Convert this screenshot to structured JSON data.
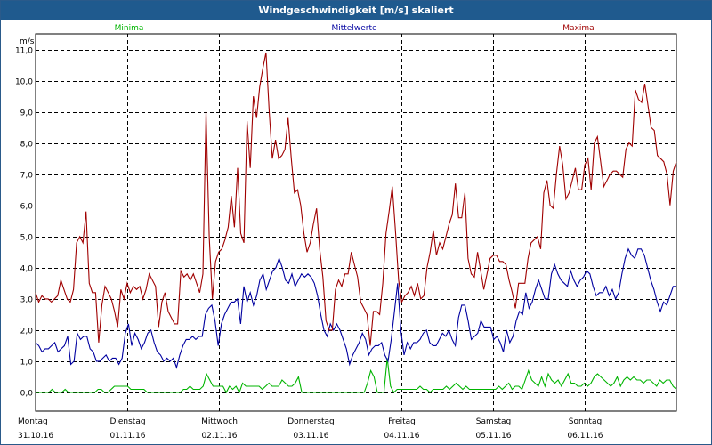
{
  "window": {
    "title": "Windgeschwindigkeit [m/s] skaliert"
  },
  "colors": {
    "min": "#00b400",
    "mean": "#0000a0",
    "max": "#a00000",
    "title_bg": "#1f5a8e"
  },
  "chart_data": {
    "type": "line",
    "title": "Windgeschwindigkeit [m/s] skaliert",
    "ylabel": "m/s",
    "ylim": [
      -0.6,
      11.5
    ],
    "grid": true,
    "legend_position": "top",
    "y_ticks": [
      "0,0",
      "1,0",
      "2,0",
      "3,0",
      "4,0",
      "5,0",
      "6,0",
      "7,0",
      "8,0",
      "9,0",
      "10,0",
      "11,0"
    ],
    "day_labels": [
      {
        "day": "Montag",
        "date": "31.10.16"
      },
      {
        "day": "Dienstag",
        "date": "01.11.16"
      },
      {
        "day": "Mittwoch",
        "date": "02.11.16"
      },
      {
        "day": "Donnerstag",
        "date": "03.11.16"
      },
      {
        "day": "Freitag",
        "date": "04.11.16"
      },
      {
        "day": "Samstag",
        "date": "05.11.16"
      },
      {
        "day": "Sonntag",
        "date": "06.11.16"
      }
    ],
    "series": [
      {
        "name": "Minima",
        "color": "#00b400",
        "values": [
          0.0,
          0.0,
          0.0,
          0.0,
          0.0,
          0.1,
          0.0,
          0.0,
          0.0,
          0.1,
          0.0,
          0.0,
          0.0,
          0.0,
          0.0,
          0.0,
          0.0,
          0.0,
          0.0,
          0.1,
          0.1,
          0.0,
          0.0,
          0.1,
          0.2,
          0.2,
          0.2,
          0.2,
          0.2,
          0.1,
          0.1,
          0.1,
          0.1,
          0.1,
          0.0,
          0.0,
          0.0,
          0.0,
          0.0,
          0.0,
          0.0,
          0.0,
          0.0,
          0.0,
          0.0,
          0.1,
          0.1,
          0.2,
          0.1,
          0.1,
          0.1,
          0.2,
          0.6,
          0.4,
          0.2,
          0.2,
          0.2,
          0.2,
          0.0,
          0.2,
          0.1,
          0.2,
          0.0,
          0.3,
          0.2,
          0.2,
          0.2,
          0.2,
          0.2,
          0.1,
          0.2,
          0.3,
          0.2,
          0.2,
          0.2,
          0.4,
          0.3,
          0.2,
          0.2,
          0.3,
          0.5,
          0.0,
          0.0,
          0.0,
          0.0,
          0.0,
          0.0,
          0.0,
          0.0,
          0.0,
          0.0,
          0.0,
          0.0,
          0.0,
          0.0,
          0.0,
          0.0,
          0.0,
          0.0,
          0.0,
          0.0,
          0.3,
          0.7,
          0.5,
          0.0,
          0.0,
          0.0,
          1.1,
          0.2,
          0.0,
          0.1,
          0.1,
          0.1,
          0.1,
          0.1,
          0.1,
          0.1,
          0.2,
          0.1,
          0.1,
          0.0,
          0.1,
          0.1,
          0.1,
          0.1,
          0.2,
          0.1,
          0.2,
          0.3,
          0.2,
          0.1,
          0.2,
          0.1,
          0.1,
          0.1,
          0.1,
          0.1,
          0.1,
          0.1,
          0.1,
          0.1,
          0.2,
          0.1,
          0.2,
          0.3,
          0.1,
          0.2,
          0.2,
          0.1,
          0.4,
          0.7,
          0.4,
          0.3,
          0.2,
          0.5,
          0.2,
          0.6,
          0.4,
          0.3,
          0.4,
          0.2,
          0.4,
          0.6,
          0.3,
          0.3,
          0.2,
          0.2,
          0.3,
          0.2,
          0.3,
          0.5,
          0.6,
          0.5,
          0.4,
          0.3,
          0.2,
          0.3,
          0.5,
          0.2,
          0.4,
          0.5,
          0.4,
          0.5,
          0.4,
          0.4,
          0.3,
          0.4,
          0.4,
          0.3,
          0.2,
          0.4,
          0.3,
          0.4,
          0.4,
          0.2,
          0.1
        ]
      },
      {
        "name": "Mittelwerte",
        "color": "#0000a0",
        "values": [
          1.6,
          1.5,
          1.3,
          1.4,
          1.4,
          1.5,
          1.6,
          1.3,
          1.4,
          1.5,
          1.8,
          0.9,
          1.0,
          1.9,
          1.7,
          1.8,
          1.8,
          1.4,
          1.3,
          1.0,
          1.0,
          1.1,
          1.2,
          1.0,
          1.1,
          1.1,
          0.9,
          1.1,
          1.9,
          2.2,
          1.5,
          1.9,
          1.7,
          1.4,
          1.6,
          1.9,
          2.0,
          1.6,
          1.3,
          1.2,
          1.0,
          1.1,
          1.0,
          1.1,
          0.8,
          1.2,
          1.5,
          1.7,
          1.7,
          1.8,
          1.7,
          1.8,
          1.8,
          2.5,
          2.7,
          2.8,
          2.3,
          1.5,
          2.2,
          2.5,
          2.7,
          2.9,
          2.9,
          3.0,
          2.2,
          3.4,
          2.9,
          3.2,
          2.8,
          3.1,
          3.6,
          3.8,
          3.3,
          3.6,
          3.9,
          4.0,
          4.3,
          4.0,
          3.6,
          3.5,
          3.8,
          3.4,
          3.6,
          3.8,
          3.7,
          3.8,
          3.7,
          3.5,
          3.1,
          2.5,
          2.0,
          1.8,
          2.2,
          2.0,
          2.2,
          2.0,
          1.7,
          1.4,
          0.9,
          1.2,
          1.4,
          1.6,
          1.9,
          1.7,
          1.2,
          1.4,
          1.5,
          1.5,
          1.6,
          1.2,
          1.0,
          1.7,
          2.6,
          3.5,
          2.0,
          1.2,
          1.6,
          1.4,
          1.6,
          1.6,
          1.7,
          1.9,
          2.0,
          1.6,
          1.5,
          1.5,
          1.7,
          1.9,
          1.8,
          2.0,
          1.7,
          1.5,
          2.4,
          2.8,
          2.8,
          2.3,
          1.7,
          1.8,
          1.9,
          2.3,
          2.1,
          2.1,
          2.1,
          1.7,
          1.8,
          1.6,
          1.3,
          2.0,
          1.6,
          1.8,
          2.3,
          2.6,
          2.5,
          3.2,
          2.7,
          2.9,
          3.3,
          3.6,
          3.3,
          3.0,
          3.0,
          3.8,
          4.1,
          3.8,
          3.6,
          3.5,
          3.4,
          3.9,
          3.6,
          3.4,
          3.6,
          3.7,
          3.9,
          3.8,
          3.4,
          3.1,
          3.2,
          3.2,
          3.4,
          3.1,
          3.3,
          3.0,
          3.2,
          3.8,
          4.3,
          4.6,
          4.4,
          4.3,
          4.6,
          4.6,
          4.4,
          4.0,
          3.6,
          3.3,
          2.9,
          2.6,
          2.9,
          2.8,
          3.1,
          3.4,
          3.4
        ]
      },
      {
        "name": "Maxima",
        "color": "#a00000",
        "values": [
          3.2,
          2.9,
          3.1,
          3.0,
          3.0,
          2.9,
          3.0,
          3.1,
          3.6,
          3.3,
          3.0,
          2.9,
          3.3,
          4.8,
          5.0,
          4.8,
          5.8,
          3.5,
          3.2,
          3.2,
          1.6,
          2.8,
          3.4,
          3.2,
          3.0,
          2.6,
          2.1,
          3.3,
          3.0,
          3.5,
          3.2,
          3.4,
          3.3,
          3.4,
          3.0,
          3.3,
          3.8,
          3.6,
          3.4,
          2.1,
          2.9,
          3.2,
          2.6,
          2.4,
          2.2,
          2.2,
          3.9,
          3.7,
          3.8,
          3.6,
          3.8,
          3.5,
          3.2,
          3.8,
          9.0,
          5.0,
          3.0,
          4.2,
          4.5,
          4.6,
          4.9,
          5.3,
          6.3,
          5.3,
          7.2,
          5.1,
          4.8,
          8.7,
          7.2,
          9.5,
          8.8,
          9.8,
          10.4,
          10.9,
          9.0,
          7.5,
          8.1,
          7.5,
          7.6,
          7.8,
          8.8,
          7.5,
          6.4,
          6.5,
          6.0,
          5.1,
          4.5,
          4.8,
          5.4,
          5.9,
          4.6,
          3.7,
          2.3,
          2.0,
          2.0,
          3.3,
          3.6,
          3.4,
          3.8,
          3.8,
          4.5,
          4.1,
          3.7,
          2.9,
          2.7,
          2.5,
          1.5,
          2.6,
          2.6,
          2.5,
          3.5,
          5.1,
          5.8,
          6.6,
          5.2,
          3.6,
          2.9,
          3.1,
          3.2,
          3.4,
          3.1,
          3.5,
          3.0,
          3.1,
          4.0,
          4.5,
          5.2,
          4.4,
          4.8,
          4.6,
          5.0,
          5.4,
          5.7,
          6.7,
          5.6,
          5.6,
          6.4,
          4.3,
          3.8,
          3.7,
          4.5,
          3.9,
          3.3,
          3.8,
          4.3,
          4.4,
          4.4,
          4.2,
          4.2,
          4.1,
          3.6,
          3.2,
          2.7,
          3.5,
          3.5,
          3.5,
          4.3,
          4.8,
          4.9,
          5.0,
          4.6,
          6.4,
          6.8,
          6.0,
          5.9,
          7.0,
          7.9,
          7.3,
          6.2,
          6.4,
          6.8,
          7.2,
          6.5,
          6.5,
          7.3,
          7.5,
          6.5,
          8.0,
          8.2,
          7.4,
          6.6,
          6.8,
          7.0,
          7.1,
          7.1,
          7.0,
          6.9,
          7.8,
          8.0,
          7.9,
          9.7,
          9.4,
          9.3,
          9.9,
          9.2,
          8.5,
          8.4,
          7.6,
          7.5,
          7.4,
          7.0,
          6.0,
          7.1,
          7.4
        ]
      }
    ]
  }
}
